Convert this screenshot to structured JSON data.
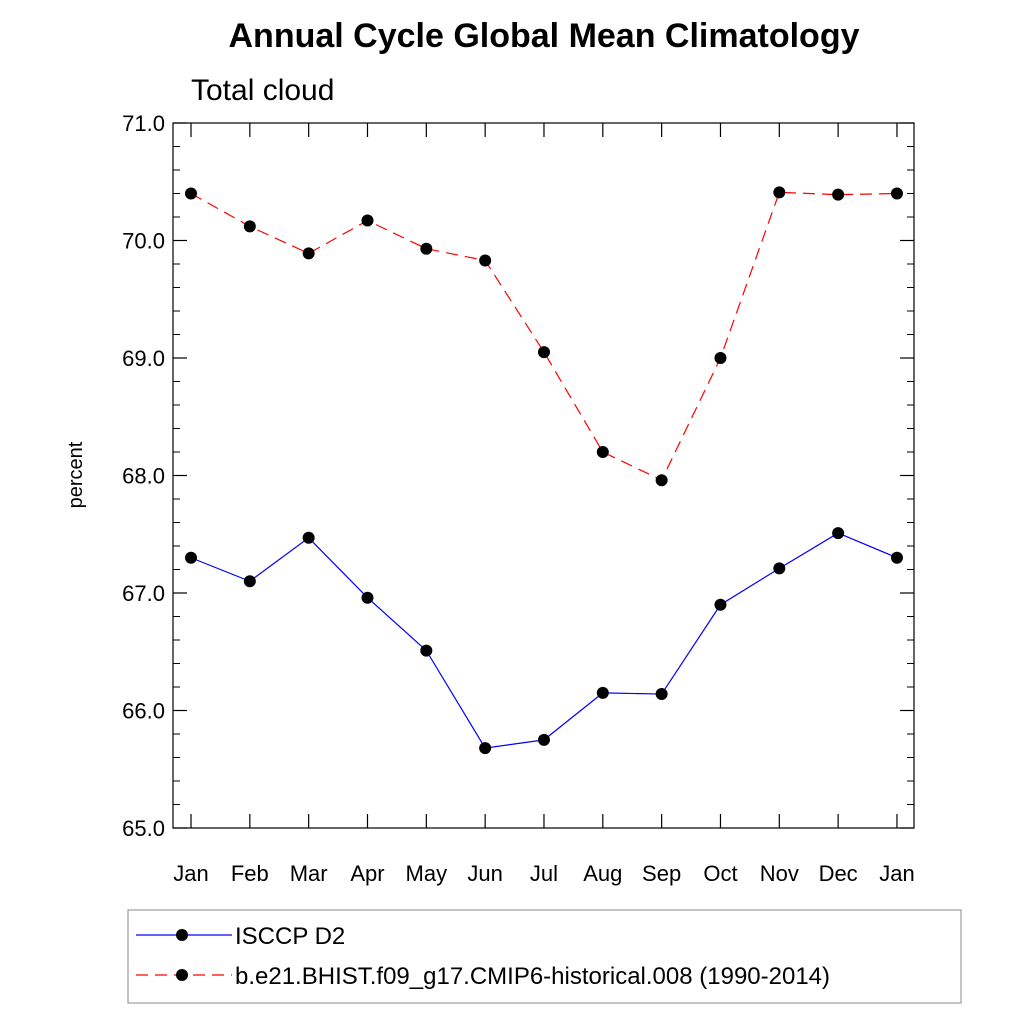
{
  "chart_data": {
    "type": "line",
    "title": "Annual Cycle Global Mean Climatology",
    "subtitle": "Total cloud",
    "ylabel": "percent",
    "xlabel": "",
    "categories": [
      "Jan",
      "Feb",
      "Mar",
      "Apr",
      "May",
      "Jun",
      "Jul",
      "Aug",
      "Sep",
      "Oct",
      "Nov",
      "Dec",
      "Jan"
    ],
    "ylim": [
      65.0,
      71.0
    ],
    "yticks": [
      "65.0",
      "66.0",
      "67.0",
      "68.0",
      "69.0",
      "70.0",
      "71.0"
    ],
    "grid": false,
    "legend_position": "bottom",
    "series": [
      {
        "name": "ISCCP D2",
        "color": "#0000ff",
        "line_style": "solid",
        "marker": "filled-circle",
        "values": [
          67.3,
          67.1,
          67.47,
          66.96,
          66.51,
          65.68,
          65.75,
          66.15,
          66.14,
          66.9,
          67.21,
          67.51,
          67.3
        ]
      },
      {
        "name": "b.e21.BHIST.f09_g17.CMIP6-historical.008 (1990-2014)",
        "color": "#ff0000",
        "line_style": "dashed",
        "marker": "filled-circle",
        "values": [
          70.4,
          70.12,
          69.89,
          70.17,
          69.93,
          69.83,
          69.05,
          68.2,
          67.96,
          69.0,
          70.41,
          70.39,
          70.4
        ]
      }
    ]
  }
}
